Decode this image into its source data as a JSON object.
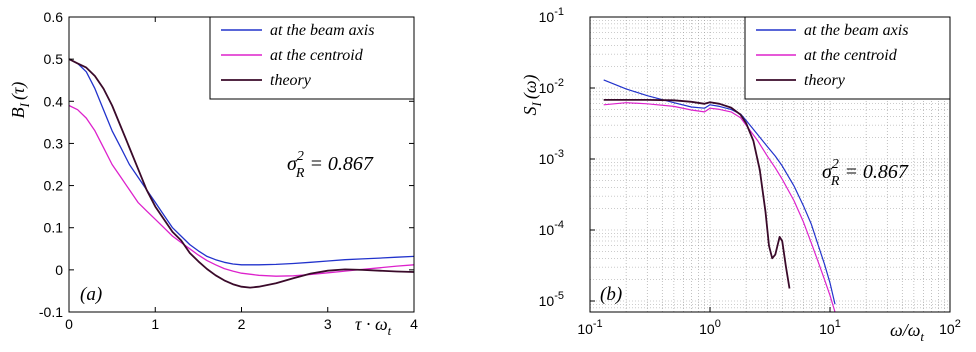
{
  "chart_data": [
    {
      "type": "line",
      "ylabel_main": "B",
      "ylabel_sub": "I",
      "ylabel_arg": "(τ)",
      "xlabel_main": "τ · ω",
      "xlabel_sub": "t",
      "xlim": [
        0,
        4
      ],
      "ylim": [
        -0.1,
        0.6
      ],
      "xticks": [
        "0",
        "1",
        "2",
        "3",
        "4"
      ],
      "yticks": [
        "-0.1",
        "0",
        "0.1",
        "0.2",
        "0.3",
        "0.4",
        "0.5",
        "0.6"
      ],
      "legend_position": "top-right",
      "annotation_sigma": "σ",
      "annotation_sup": "2",
      "annotation_sub": "R",
      "annotation_value": " = 0.867",
      "panel_label": "(a)",
      "series": [
        {
          "name": "at the beam axis",
          "color": "#2233cc",
          "x": [
            0,
            0.1,
            0.2,
            0.3,
            0.4,
            0.5,
            0.6,
            0.7,
            0.8,
            0.9,
            1.0,
            1.1,
            1.2,
            1.3,
            1.4,
            1.5,
            1.6,
            1.7,
            1.8,
            1.9,
            2.0,
            2.2,
            2.4,
            2.6,
            2.8,
            3.0,
            3.2,
            3.4,
            3.6,
            3.8,
            4.0
          ],
          "y": [
            0.5,
            0.49,
            0.47,
            0.43,
            0.38,
            0.33,
            0.29,
            0.25,
            0.22,
            0.19,
            0.16,
            0.13,
            0.1,
            0.08,
            0.06,
            0.045,
            0.032,
            0.024,
            0.018,
            0.014,
            0.012,
            0.012,
            0.013,
            0.015,
            0.018,
            0.021,
            0.024,
            0.026,
            0.028,
            0.03,
            0.032
          ]
        },
        {
          "name": "at the centroid",
          "color": "#dd22cc",
          "x": [
            0,
            0.1,
            0.2,
            0.3,
            0.4,
            0.5,
            0.6,
            0.7,
            0.8,
            0.9,
            1.0,
            1.1,
            1.2,
            1.3,
            1.4,
            1.5,
            1.6,
            1.7,
            1.8,
            1.9,
            2.0,
            2.2,
            2.4,
            2.6,
            2.8,
            3.0,
            3.2,
            3.4,
            3.6,
            3.8,
            4.0
          ],
          "y": [
            0.39,
            0.38,
            0.36,
            0.33,
            0.29,
            0.25,
            0.22,
            0.19,
            0.16,
            0.14,
            0.12,
            0.1,
            0.08,
            0.065,
            0.05,
            0.035,
            0.022,
            0.012,
            0.003,
            -0.003,
            -0.008,
            -0.013,
            -0.015,
            -0.014,
            -0.011,
            -0.007,
            -0.003,
            0.001,
            0.005,
            0.009,
            0.012
          ]
        },
        {
          "name": "theory",
          "color": "#3a0a2a",
          "x": [
            0,
            0.1,
            0.2,
            0.3,
            0.4,
            0.5,
            0.6,
            0.7,
            0.8,
            0.9,
            1.0,
            1.1,
            1.2,
            1.3,
            1.4,
            1.5,
            1.6,
            1.7,
            1.8,
            1.9,
            2.0,
            2.1,
            2.2,
            2.4,
            2.6,
            2.8,
            3.0,
            3.2,
            3.4,
            3.6,
            3.8,
            4.0
          ],
          "y": [
            0.5,
            0.49,
            0.48,
            0.46,
            0.43,
            0.39,
            0.34,
            0.29,
            0.24,
            0.19,
            0.15,
            0.12,
            0.09,
            0.07,
            0.04,
            0.02,
            0.002,
            -0.013,
            -0.025,
            -0.034,
            -0.04,
            -0.042,
            -0.04,
            -0.032,
            -0.02,
            -0.009,
            -0.002,
            0.001,
            0.0,
            -0.002,
            -0.004,
            -0.005
          ]
        }
      ]
    },
    {
      "type": "line",
      "ylabel_main": "S",
      "ylabel_sub": "I",
      "ylabel_arg": "(ω)",
      "xlabel_main": "ω/ω",
      "xlabel_sub": "t",
      "xscale": "log",
      "yscale": "log",
      "xlim": [
        0.1,
        100
      ],
      "ylim": [
        7e-06,
        0.1
      ],
      "xtick_base": [
        "10",
        "10",
        "10",
        "10"
      ],
      "xtick_exp": [
        "-1",
        "0",
        "1",
        "2"
      ],
      "ytick_base": [
        "10",
        "10",
        "10",
        "10",
        "10"
      ],
      "ytick_exp": [
        "-5",
        "-4",
        "-3",
        "-2",
        "-1"
      ],
      "grid": true,
      "legend_position": "top-right",
      "annotation_sigma": "σ",
      "annotation_sup": "2",
      "annotation_sub": "R",
      "annotation_value": " = 0.867",
      "panel_label": "(b)",
      "series": [
        {
          "name": "at the beam axis",
          "color": "#2233cc",
          "x": [
            0.13,
            0.2,
            0.3,
            0.5,
            0.7,
            0.9,
            1.0,
            1.2,
            1.5,
            1.8,
            2.0,
            2.5,
            3.0,
            3.5,
            4.0,
            5.0,
            6.0,
            7.0,
            8.0,
            9.0,
            10.0,
            11.0
          ],
          "y": [
            0.013,
            0.0097,
            0.0078,
            0.0062,
            0.0054,
            0.0052,
            0.0058,
            0.0055,
            0.005,
            0.0043,
            0.0035,
            0.0022,
            0.0015,
            0.0011,
            0.0008,
            0.00042,
            0.00022,
            0.00012,
            6e-05,
            3.3e-05,
            1.8e-05,
            9e-06
          ]
        },
        {
          "name": "at the centroid",
          "color": "#dd22cc",
          "x": [
            0.13,
            0.2,
            0.3,
            0.5,
            0.7,
            0.9,
            1.0,
            1.2,
            1.5,
            1.8,
            2.0,
            2.5,
            3.0,
            3.5,
            4.0,
            5.0,
            6.0,
            7.0,
            8.0,
            9.0,
            10.0,
            11.0
          ],
          "y": [
            0.0058,
            0.0062,
            0.006,
            0.0055,
            0.0049,
            0.0046,
            0.0052,
            0.005,
            0.0046,
            0.0038,
            0.003,
            0.0018,
            0.0011,
            0.00075,
            0.00052,
            0.00026,
            0.00013,
            6.5e-05,
            3.5e-05,
            2e-05,
            1.2e-05,
            7e-06
          ]
        },
        {
          "name": "theory",
          "color": "#3a0a2a",
          "x": [
            0.13,
            0.2,
            0.3,
            0.5,
            0.7,
            0.9,
            1.0,
            1.2,
            1.5,
            1.8,
            2.0,
            2.3,
            2.6,
            2.9,
            3.1,
            3.3,
            3.5,
            3.8,
            4.0,
            4.3,
            4.6
          ],
          "y": [
            0.0068,
            0.0068,
            0.0068,
            0.0067,
            0.0064,
            0.006,
            0.0063,
            0.006,
            0.0053,
            0.0042,
            0.0032,
            0.0018,
            0.0007,
            0.00018,
            6e-05,
            4e-05,
            4.5e-05,
            8e-05,
            7e-05,
            3e-05,
            1.5e-05
          ]
        }
      ]
    }
  ]
}
